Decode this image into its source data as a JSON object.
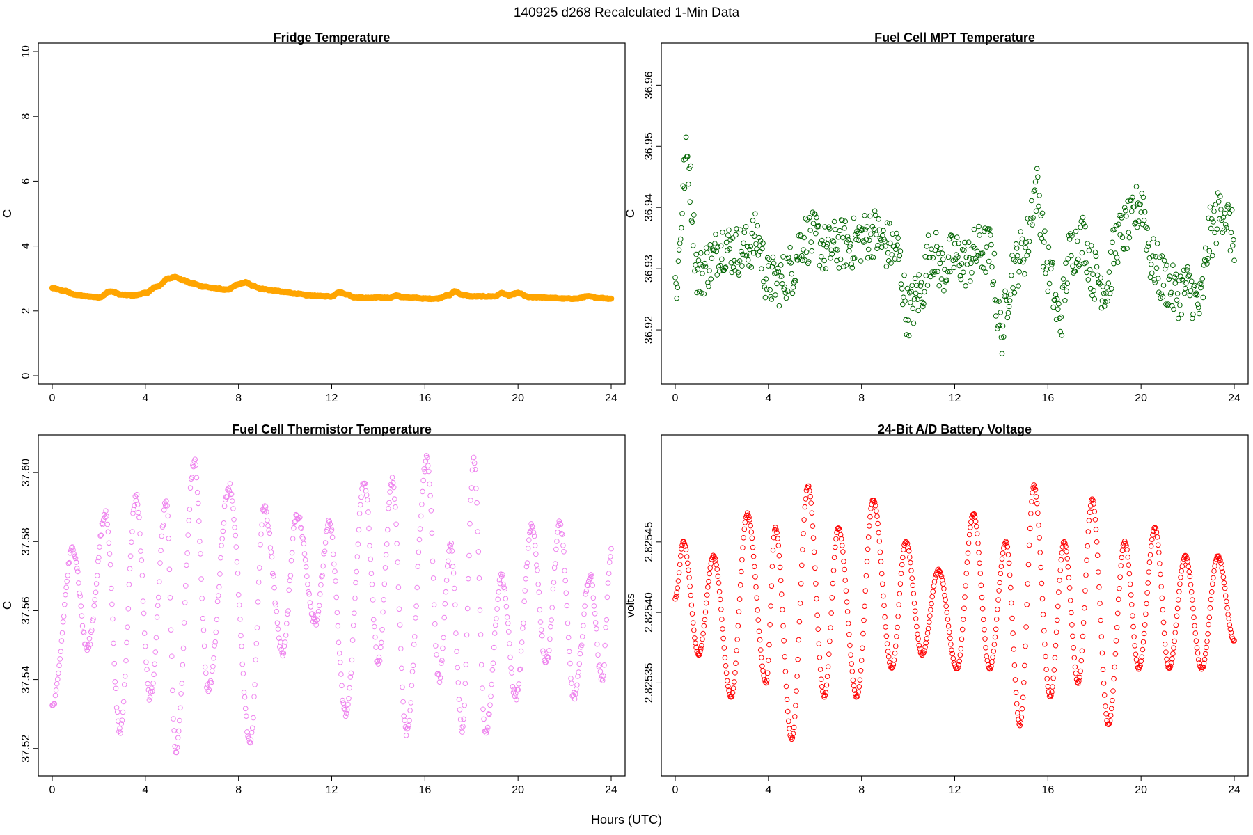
{
  "figure": {
    "title": "140925   d268   Recalculated 1-Min Data",
    "xlabel": "Hours (UTC)"
  },
  "chart_data": [
    {
      "id": "fridge",
      "type": "scatter",
      "title": "Fridge Temperature",
      "xlabel": "",
      "ylabel": "C",
      "xlim": [
        0,
        24
      ],
      "ylim": [
        0,
        10
      ],
      "xticks": [
        0,
        4,
        8,
        12,
        16,
        20,
        24
      ],
      "yticks": [
        0,
        2,
        4,
        6,
        8,
        10
      ],
      "ytick_labels": [
        "0",
        "2",
        "4",
        "6",
        "8",
        "10"
      ],
      "grid": false,
      "color": "#ffa500",
      "marker": "filled-circle",
      "series": [
        {
          "x": [
            0,
            0.5,
            1,
            1.5,
            2,
            2.5,
            3,
            3.5,
            4,
            4.5,
            5,
            5.3,
            5.6,
            6,
            6.5,
            7,
            7.5,
            8,
            8.3,
            8.6,
            9,
            9.5,
            10,
            10.5,
            11,
            11.5,
            12,
            12.3,
            12.6,
            13,
            13.5,
            14,
            14.5,
            14.8,
            15,
            15.5,
            16,
            16.5,
            17,
            17.3,
            17.6,
            18,
            18.5,
            19,
            19.3,
            19.6,
            20,
            20.5,
            21,
            21.5,
            22,
            22.5,
            23,
            23.5,
            24
          ],
          "y": [
            2.7,
            2.62,
            2.5,
            2.45,
            2.42,
            2.6,
            2.5,
            2.48,
            2.55,
            2.75,
            3.0,
            3.05,
            2.95,
            2.85,
            2.75,
            2.7,
            2.65,
            2.82,
            2.88,
            2.78,
            2.68,
            2.63,
            2.58,
            2.53,
            2.48,
            2.46,
            2.45,
            2.58,
            2.52,
            2.42,
            2.4,
            2.42,
            2.4,
            2.48,
            2.43,
            2.41,
            2.38,
            2.38,
            2.48,
            2.6,
            2.5,
            2.45,
            2.45,
            2.45,
            2.55,
            2.48,
            2.55,
            2.42,
            2.42,
            2.4,
            2.38,
            2.38,
            2.45,
            2.4,
            2.38
          ]
        }
      ]
    },
    {
      "id": "fuelcell-mpt",
      "type": "scatter",
      "title": "Fuel Cell MPT Temperature",
      "xlabel": "",
      "ylabel": "C",
      "xlim": [
        0,
        24
      ],
      "ylim": [
        36.9125,
        36.9655
      ],
      "xticks": [
        0,
        4,
        8,
        12,
        16,
        20,
        24
      ],
      "yticks": [
        36.92,
        36.93,
        36.94,
        36.95,
        36.96
      ],
      "ytick_labels": [
        "36.92",
        "36.93",
        "36.94",
        "36.95",
        "36.96"
      ],
      "grid": false,
      "color": "#006400",
      "marker": "open-circle",
      "series": [
        {
          "x": [
            0,
            0.5,
            1,
            1.5,
            2,
            2.5,
            3,
            3.5,
            4,
            4.5,
            5,
            5.5,
            6,
            6.5,
            7,
            7.5,
            8,
            8.5,
            9,
            9.5,
            10,
            10.5,
            11,
            11.5,
            12,
            12.5,
            13,
            13.5,
            14,
            14.5,
            15,
            15.5,
            16,
            16.5,
            17,
            17.5,
            18,
            18.5,
            19,
            19.5,
            20,
            20.5,
            21,
            21.5,
            22,
            22.5,
            23,
            23.5,
            24
          ],
          "y": [
            36.927,
            36.948,
            36.929,
            36.931,
            36.934,
            36.933,
            36.933,
            36.935,
            36.928,
            36.928,
            36.93,
            36.935,
            36.935,
            36.933,
            36.934,
            36.934,
            36.935,
            36.936,
            36.934,
            36.933,
            36.923,
            36.926,
            36.933,
            36.93,
            36.932,
            36.931,
            36.933,
            36.933,
            36.92,
            36.93,
            36.933,
            36.943,
            36.93,
            36.922,
            36.933,
            36.935,
            36.929,
            36.927,
            36.935,
            36.937,
            36.941,
            36.931,
            36.928,
            36.926,
            36.927,
            36.924,
            36.936,
            36.94,
            36.935
          ]
        }
      ]
    },
    {
      "id": "fuelcell-thermistor",
      "type": "scatter",
      "title": "Fuel Cell Thermistor Temperature",
      "xlabel": "",
      "ylabel": "C",
      "xlim": [
        0,
        24
      ],
      "ylim": [
        37.5145,
        37.6085
      ],
      "xticks": [
        0,
        4,
        8,
        12,
        16,
        20,
        24
      ],
      "yticks": [
        37.52,
        37.54,
        37.56,
        37.58,
        37.6
      ],
      "ytick_labels": [
        "37.52",
        "37.54",
        "37.56",
        "37.58",
        "37.60"
      ],
      "grid": false,
      "color": "#ee82ee",
      "marker": "open-circle",
      "series": [
        {
          "x": [
            0,
            0.9,
            1.5,
            2.3,
            2.9,
            3.6,
            4.2,
            4.9,
            5.3,
            6.1,
            6.7,
            7.6,
            8.5,
            9.1,
            9.9,
            10.5,
            11.3,
            11.9,
            12.6,
            13.4,
            14.0,
            14.6,
            15.2,
            16.1,
            16.6,
            17.1,
            17.6,
            18.1,
            18.6,
            19.3,
            19.9,
            20.6,
            21.2,
            21.8,
            22.4,
            23.1,
            23.6,
            24
          ],
          "y": [
            37.532,
            37.578,
            37.549,
            37.588,
            37.525,
            37.593,
            37.535,
            37.591,
            37.519,
            37.603,
            37.537,
            37.596,
            37.522,
            37.59,
            37.548,
            37.588,
            37.557,
            37.585,
            37.53,
            37.597,
            37.545,
            37.598,
            37.525,
            37.604,
            37.54,
            37.579,
            37.525,
            37.604,
            37.525,
            37.57,
            37.535,
            37.584,
            37.545,
            37.585,
            37.535,
            37.57,
            37.54,
            37.577
          ]
        }
      ]
    },
    {
      "id": "battery-voltage",
      "type": "scatter",
      "title": "24-Bit A/D Battery Voltage",
      "xlabel": "",
      "ylabel": "volts",
      "xlim": [
        0,
        24
      ],
      "ylim": [
        2.82529,
        2.82552
      ],
      "xticks": [
        0,
        4,
        8,
        12,
        16,
        20,
        24
      ],
      "yticks": [
        2.82535,
        2.8254,
        2.82545
      ],
      "ytick_labels": [
        "2.82535",
        "2.82540",
        "2.82545"
      ],
      "grid": false,
      "color": "#ff0000",
      "marker": "open-circle",
      "series": [
        {
          "x": [
            0,
            0.35,
            1.0,
            1.65,
            2.4,
            3.1,
            3.9,
            4.3,
            5.0,
            5.7,
            6.4,
            7.0,
            7.8,
            8.5,
            9.3,
            9.9,
            10.6,
            11.3,
            12.1,
            12.8,
            13.5,
            14.2,
            14.8,
            15.4,
            16.1,
            16.7,
            17.3,
            17.9,
            18.6,
            19.3,
            19.9,
            20.6,
            21.2,
            21.9,
            22.6,
            23.3,
            24
          ],
          "y": [
            2.82541,
            2.82545,
            2.82537,
            2.82544,
            2.82534,
            2.82547,
            2.82535,
            2.82546,
            2.82531,
            2.82549,
            2.82534,
            2.82546,
            2.82534,
            2.82548,
            2.82536,
            2.82545,
            2.82537,
            2.82543,
            2.82536,
            2.82547,
            2.82536,
            2.82545,
            2.82532,
            2.82549,
            2.82534,
            2.82545,
            2.82535,
            2.82548,
            2.82532,
            2.82545,
            2.82536,
            2.82546,
            2.82536,
            2.82544,
            2.82536,
            2.82544,
            2.82538
          ]
        }
      ]
    }
  ]
}
